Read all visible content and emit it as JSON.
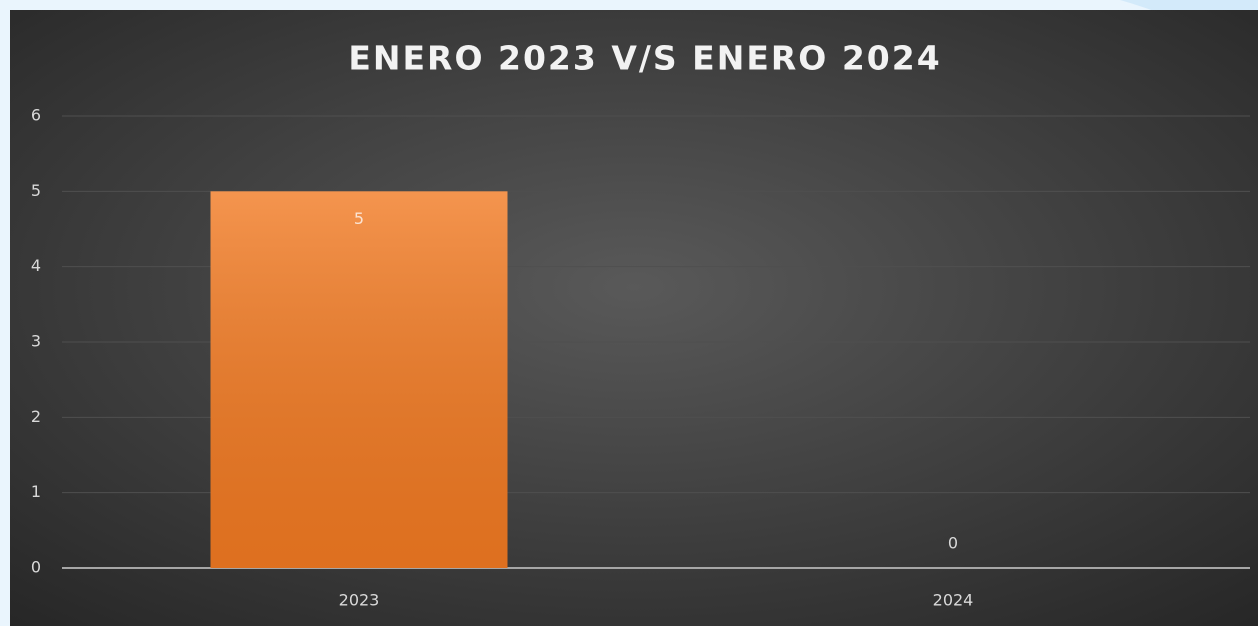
{
  "chart_data": {
    "type": "bar",
    "title": "ENERO 2023 V/S ENERO 2024",
    "categories": [
      "2023",
      "2024"
    ],
    "values": [
      5,
      0
    ],
    "color": "#f27a22",
    "ylim": [
      0,
      6
    ],
    "yticks": [
      0,
      1,
      2,
      3,
      4,
      5,
      6
    ],
    "grid": true
  }
}
